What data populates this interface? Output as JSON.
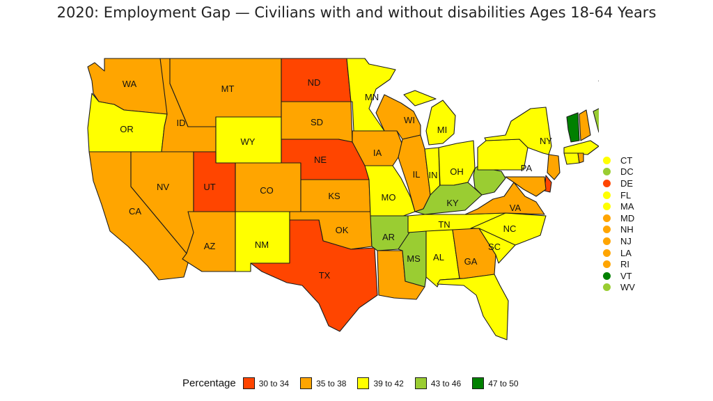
{
  "title": "2020: Employment Gap — Civilians with and without disabilities Ages 18-64 Years",
  "legend": {
    "title": "Percentage",
    "bins": [
      {
        "label": "30 to 34",
        "color": "#ff4500"
      },
      {
        "label": "35 to 38",
        "color": "#ffa500"
      },
      {
        "label": "39 to 42",
        "color": "#ffff00"
      },
      {
        "label": "43 to 46",
        "color": "#9acd32"
      },
      {
        "label": "47 to 50",
        "color": "#008000"
      }
    ]
  },
  "small_states_legend": [
    {
      "code": "CT",
      "bin": 2
    },
    {
      "code": "DC",
      "bin": 3
    },
    {
      "code": "DE",
      "bin": 0
    },
    {
      "code": "FL",
      "bin": 2
    },
    {
      "code": "MA",
      "bin": 2
    },
    {
      "code": "MD",
      "bin": 1
    },
    {
      "code": "NH",
      "bin": 1
    },
    {
      "code": "NJ",
      "bin": 1
    },
    {
      "code": "LA",
      "bin": 1
    },
    {
      "code": "RI",
      "bin": 1
    },
    {
      "code": "VT",
      "bin": 4
    },
    {
      "code": "WV",
      "bin": 3
    }
  ],
  "states": [
    {
      "code": "WA",
      "bin": 1
    },
    {
      "code": "OR",
      "bin": 2
    },
    {
      "code": "CA",
      "bin": 1
    },
    {
      "code": "ID",
      "bin": 1
    },
    {
      "code": "NV",
      "bin": 1
    },
    {
      "code": "MT",
      "bin": 1
    },
    {
      "code": "WY",
      "bin": 2
    },
    {
      "code": "UT",
      "bin": 0
    },
    {
      "code": "AZ",
      "bin": 1
    },
    {
      "code": "CO",
      "bin": 1
    },
    {
      "code": "NM",
      "bin": 2
    },
    {
      "code": "ND",
      "bin": 0
    },
    {
      "code": "SD",
      "bin": 1
    },
    {
      "code": "NE",
      "bin": 0
    },
    {
      "code": "KS",
      "bin": 1
    },
    {
      "code": "OK",
      "bin": 1
    },
    {
      "code": "TX",
      "bin": 0
    },
    {
      "code": "MN",
      "bin": 2
    },
    {
      "code": "IA",
      "bin": 1
    },
    {
      "code": "MO",
      "bin": 2
    },
    {
      "code": "AR",
      "bin": 3
    },
    {
      "code": "LA",
      "bin": 1
    },
    {
      "code": "WI",
      "bin": 1
    },
    {
      "code": "IL",
      "bin": 1
    },
    {
      "code": "MI",
      "bin": 2
    },
    {
      "code": "IN",
      "bin": 2
    },
    {
      "code": "OH",
      "bin": 2
    },
    {
      "code": "KY",
      "bin": 3
    },
    {
      "code": "TN",
      "bin": 2
    },
    {
      "code": "MS",
      "bin": 3
    },
    {
      "code": "AL",
      "bin": 2
    },
    {
      "code": "GA",
      "bin": 1
    },
    {
      "code": "FL",
      "bin": 2
    },
    {
      "code": "SC",
      "bin": 2
    },
    {
      "code": "NC",
      "bin": 2
    },
    {
      "code": "VA",
      "bin": 1
    },
    {
      "code": "WV",
      "bin": 3
    },
    {
      "code": "PA",
      "bin": 2
    },
    {
      "code": "NY",
      "bin": 2
    },
    {
      "code": "ME",
      "bin": 3
    },
    {
      "code": "VT",
      "bin": 4
    },
    {
      "code": "NH",
      "bin": 1
    },
    {
      "code": "MA",
      "bin": 2
    },
    {
      "code": "CT",
      "bin": 2
    },
    {
      "code": "RI",
      "bin": 1
    },
    {
      "code": "NJ",
      "bin": 1
    },
    {
      "code": "DE",
      "bin": 0
    },
    {
      "code": "MD",
      "bin": 1
    }
  ]
}
